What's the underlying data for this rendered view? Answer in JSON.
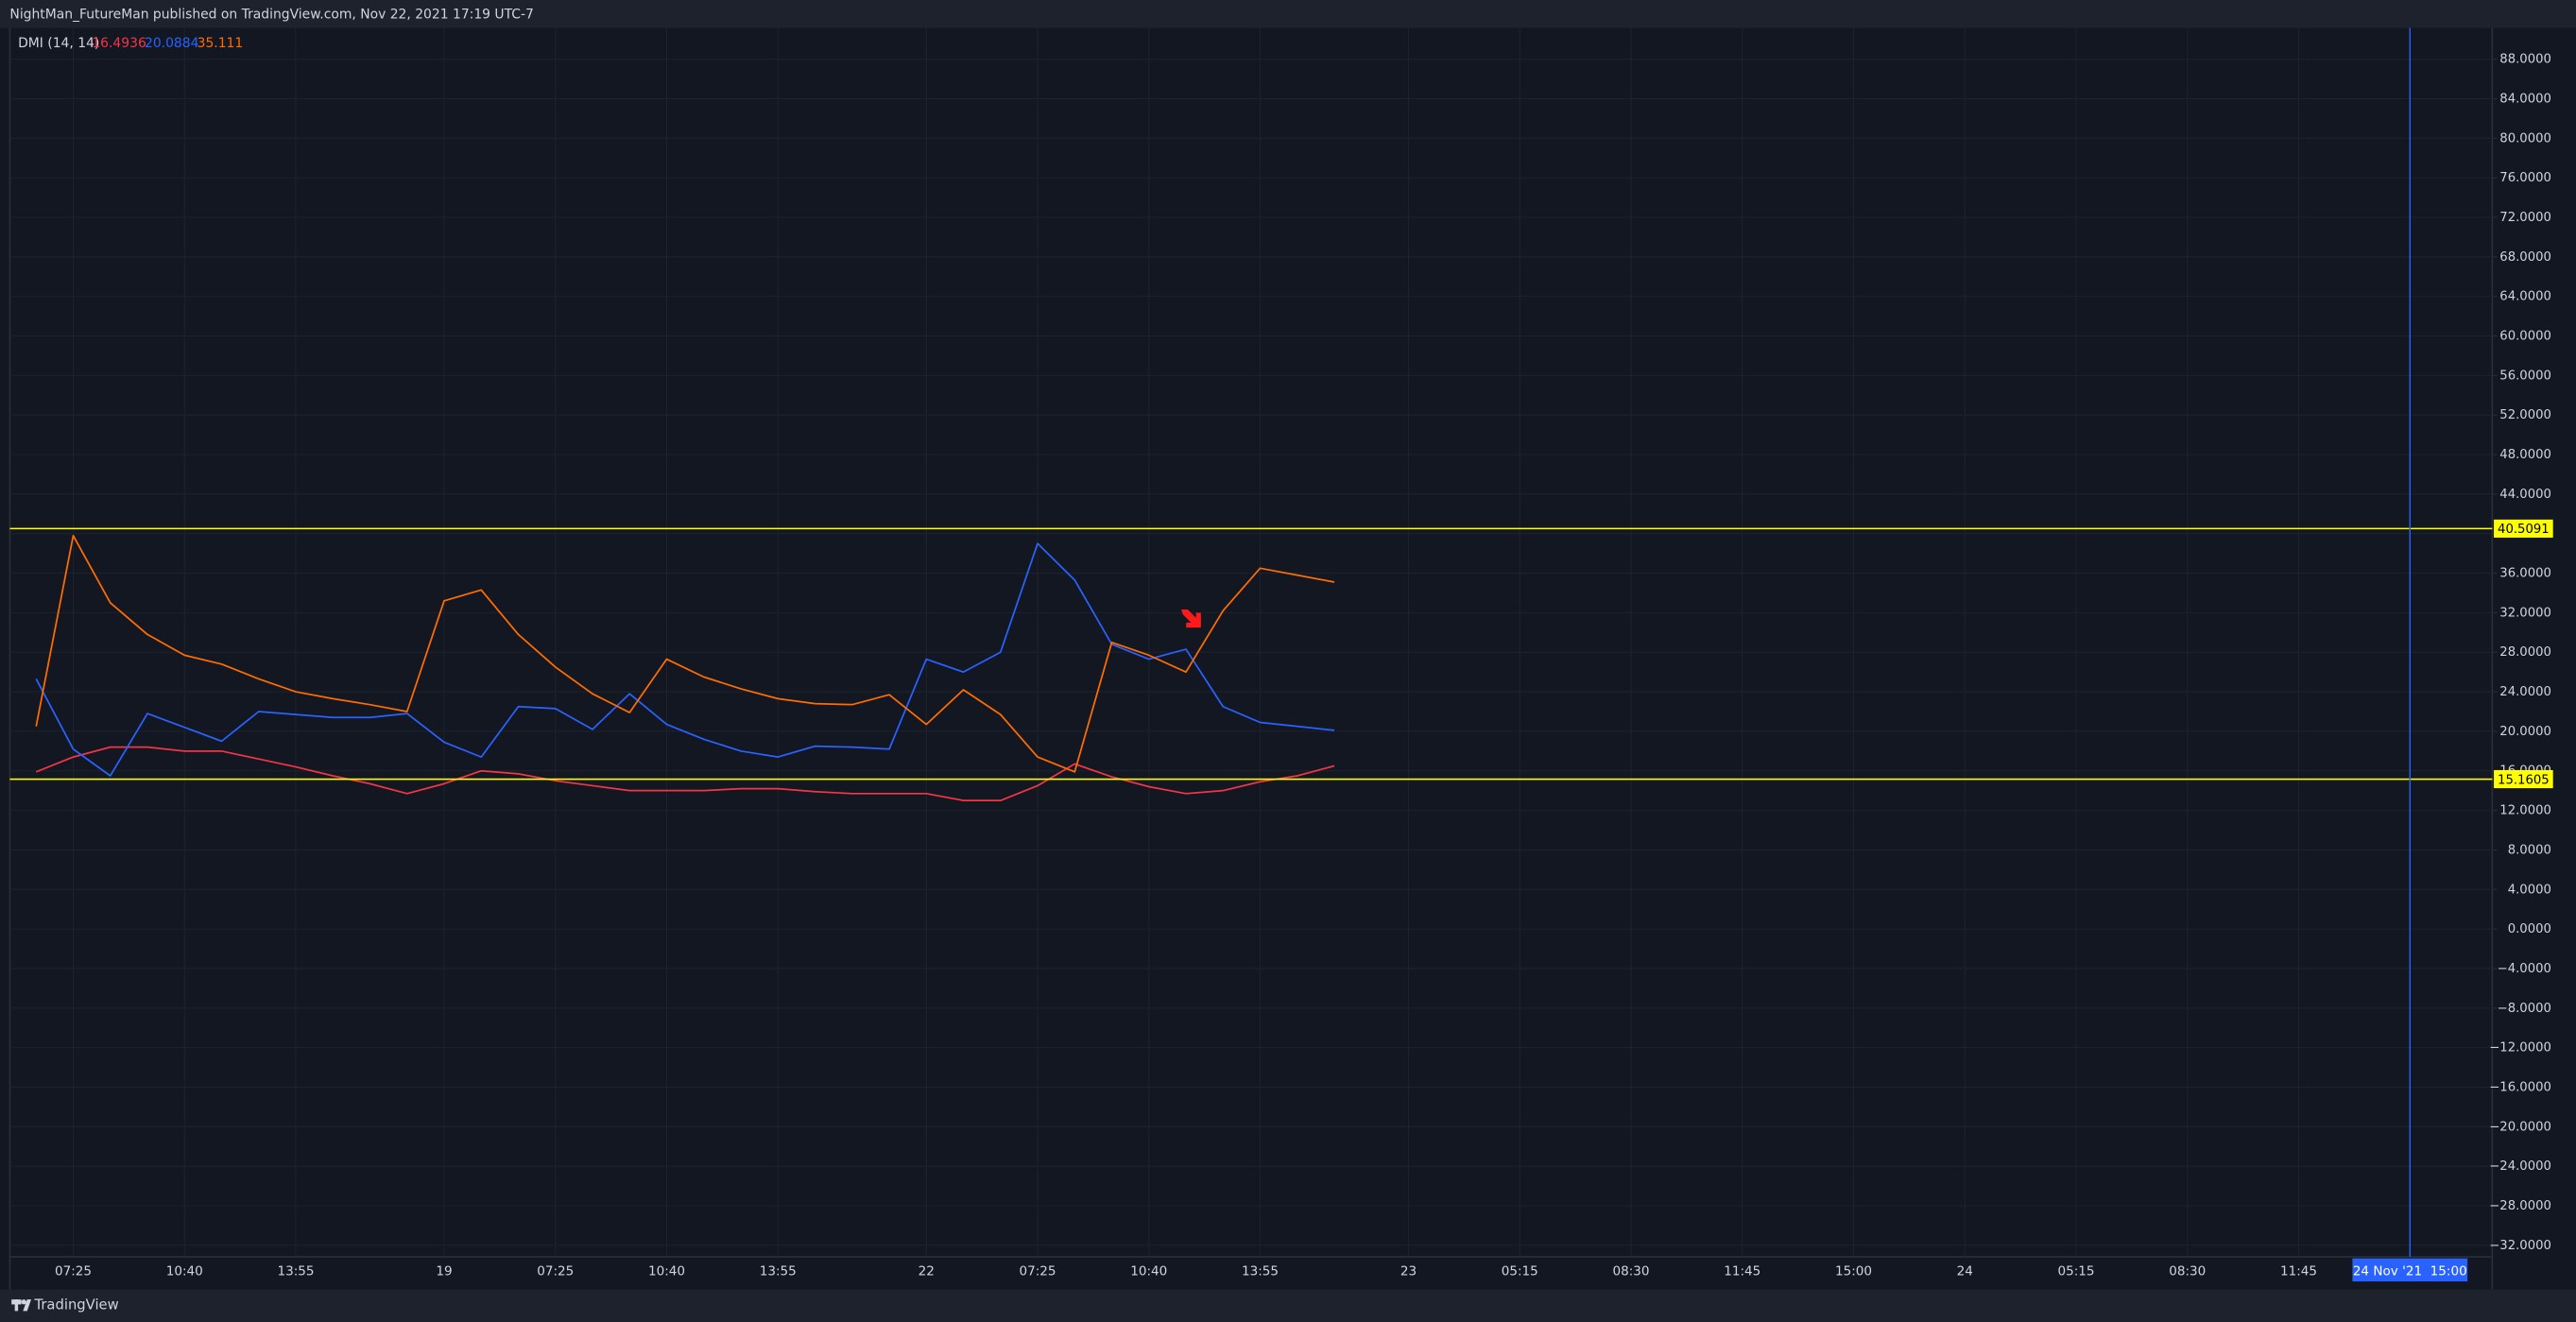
{
  "header": "NightMan_FutureMan published on TradingView.com, Nov 22, 2021 17:19 UTC-7",
  "footer": "TradingView",
  "chart_data": {
    "type": "line",
    "indicator": "DMI (14, 14)",
    "categories": [
      null,
      "07:25",
      null,
      null,
      "10:40",
      null,
      null,
      "13:55",
      null,
      null,
      null,
      "19",
      null,
      null,
      "07:25",
      null,
      null,
      "10:40",
      null,
      null,
      "13:55",
      null,
      null,
      null,
      "22",
      null,
      null,
      "07:25",
      null,
      null,
      "10:40",
      null,
      null,
      "13:55",
      null,
      null,
      null,
      "23",
      null,
      null,
      "05:15",
      null,
      null,
      "08:30",
      null,
      null,
      "11:45",
      null,
      null,
      "15:00",
      null,
      null,
      "24",
      null,
      null,
      "05:15",
      null,
      null,
      "08:30",
      null,
      null,
      "11:45",
      null,
      null,
      "24 Nov '21  15:00",
      null,
      null
    ],
    "series": [
      {
        "color": "#f23645",
        "last": 16.4936,
        "values": [
          15.9,
          17.4,
          18.4,
          18.4,
          18.0,
          18.0,
          17.2,
          16.4,
          15.5,
          14.7,
          13.7,
          14.7,
          16.0,
          15.7,
          15.0,
          14.5,
          14.0,
          14.0,
          14.0,
          14.2,
          14.2,
          13.9,
          13.7,
          13.7,
          13.7,
          13.0,
          13.0,
          14.5,
          16.7,
          15.4,
          14.4,
          13.7,
          14.0,
          14.9,
          15.5,
          16.5,
          null,
          null,
          null,
          null,
          null,
          null,
          null,
          null,
          null,
          null,
          null,
          null,
          null,
          null,
          null,
          null,
          null,
          null,
          null,
          null,
          null,
          null,
          null,
          null,
          null,
          null,
          null,
          null,
          null,
          null,
          null
        ]
      },
      {
        "color": "#2962ff",
        "last": 20.0884,
        "values": [
          25.3,
          18.2,
          15.5,
          21.8,
          20.4,
          19.0,
          22.0,
          21.7,
          21.4,
          21.4,
          21.8,
          18.9,
          17.4,
          22.5,
          22.3,
          20.2,
          23.8,
          20.7,
          19.2,
          18.0,
          17.4,
          18.5,
          18.4,
          18.2,
          27.3,
          26.0,
          28.0,
          39.0,
          35.3,
          28.8,
          27.3,
          28.3,
          22.5,
          20.9,
          20.5,
          20.1,
          null,
          null,
          null,
          null,
          null,
          null,
          null,
          null,
          null,
          null,
          null,
          null,
          null,
          null,
          null,
          null,
          null,
          null,
          null,
          null,
          null,
          null,
          null,
          null,
          null,
          null,
          null,
          null,
          null,
          null,
          null
        ]
      },
      {
        "color": "#ff6d00",
        "last": 35.111,
        "values": [
          20.5,
          39.8,
          33.0,
          29.8,
          27.7,
          26.8,
          25.3,
          24.0,
          23.3,
          22.7,
          22.0,
          33.2,
          34.3,
          29.8,
          26.5,
          23.8,
          21.9,
          27.3,
          25.5,
          24.3,
          23.3,
          22.8,
          22.7,
          23.7,
          20.7,
          24.2,
          21.7,
          17.4,
          15.9,
          29.0,
          27.7,
          26.0,
          32.2,
          36.5,
          35.8,
          35.1,
          null,
          null,
          null,
          null,
          null,
          null,
          null,
          null,
          null,
          null,
          null,
          null,
          null,
          null,
          null,
          null,
          null,
          null,
          null,
          null,
          null,
          null,
          null,
          null,
          null,
          null,
          null,
          null,
          null,
          null,
          null
        ]
      }
    ],
    "hlines": [
      {
        "value": 40.5091,
        "color": "#ffff00"
      },
      {
        "value": 15.1605,
        "color": "#ffff00"
      }
    ],
    "ylim": [
      -33.16,
      91.16
    ],
    "yticks": [
      {
        "value": 88,
        "label": "88.0000"
      },
      {
        "value": 84,
        "label": "84.0000"
      },
      {
        "value": 80,
        "label": "80.0000"
      },
      {
        "value": 76,
        "label": "76.0000"
      },
      {
        "value": 72,
        "label": "72.0000"
      },
      {
        "value": 68,
        "label": "68.0000"
      },
      {
        "value": 64,
        "label": "64.0000"
      },
      {
        "value": 60,
        "label": "60.0000"
      },
      {
        "value": 56,
        "label": "56.0000"
      },
      {
        "value": 52,
        "label": "52.0000"
      },
      {
        "value": 48,
        "label": "48.0000"
      },
      {
        "value": 44,
        "label": "44.0000"
      },
      {
        "value": 40,
        "label": "40.0000"
      },
      {
        "value": 36,
        "label": "36.0000"
      },
      {
        "value": 32,
        "label": "32.0000"
      },
      {
        "value": 28,
        "label": "28.0000"
      },
      {
        "value": 24,
        "label": "24.0000"
      },
      {
        "value": 20,
        "label": "20.0000"
      },
      {
        "value": 16,
        "label": "16.0000"
      },
      {
        "value": 12,
        "label": "12.0000"
      },
      {
        "value": 8,
        "label": "8.0000"
      },
      {
        "value": 4,
        "label": "4.0000"
      },
      {
        "value": 0,
        "label": "0.0000"
      },
      {
        "value": -4,
        "label": "−4.0000"
      },
      {
        "value": -8,
        "label": "−8.0000"
      },
      {
        "value": -12,
        "label": "−12.0000"
      },
      {
        "value": -16,
        "label": "−16.0000"
      },
      {
        "value": -20,
        "label": "−20.0000"
      },
      {
        "value": -24,
        "label": "−24.0000"
      },
      {
        "value": -28,
        "label": "−28.0000"
      },
      {
        "value": -32,
        "label": "−32.0000"
      }
    ],
    "grid": true,
    "crosshair_color": "#2962ff"
  }
}
